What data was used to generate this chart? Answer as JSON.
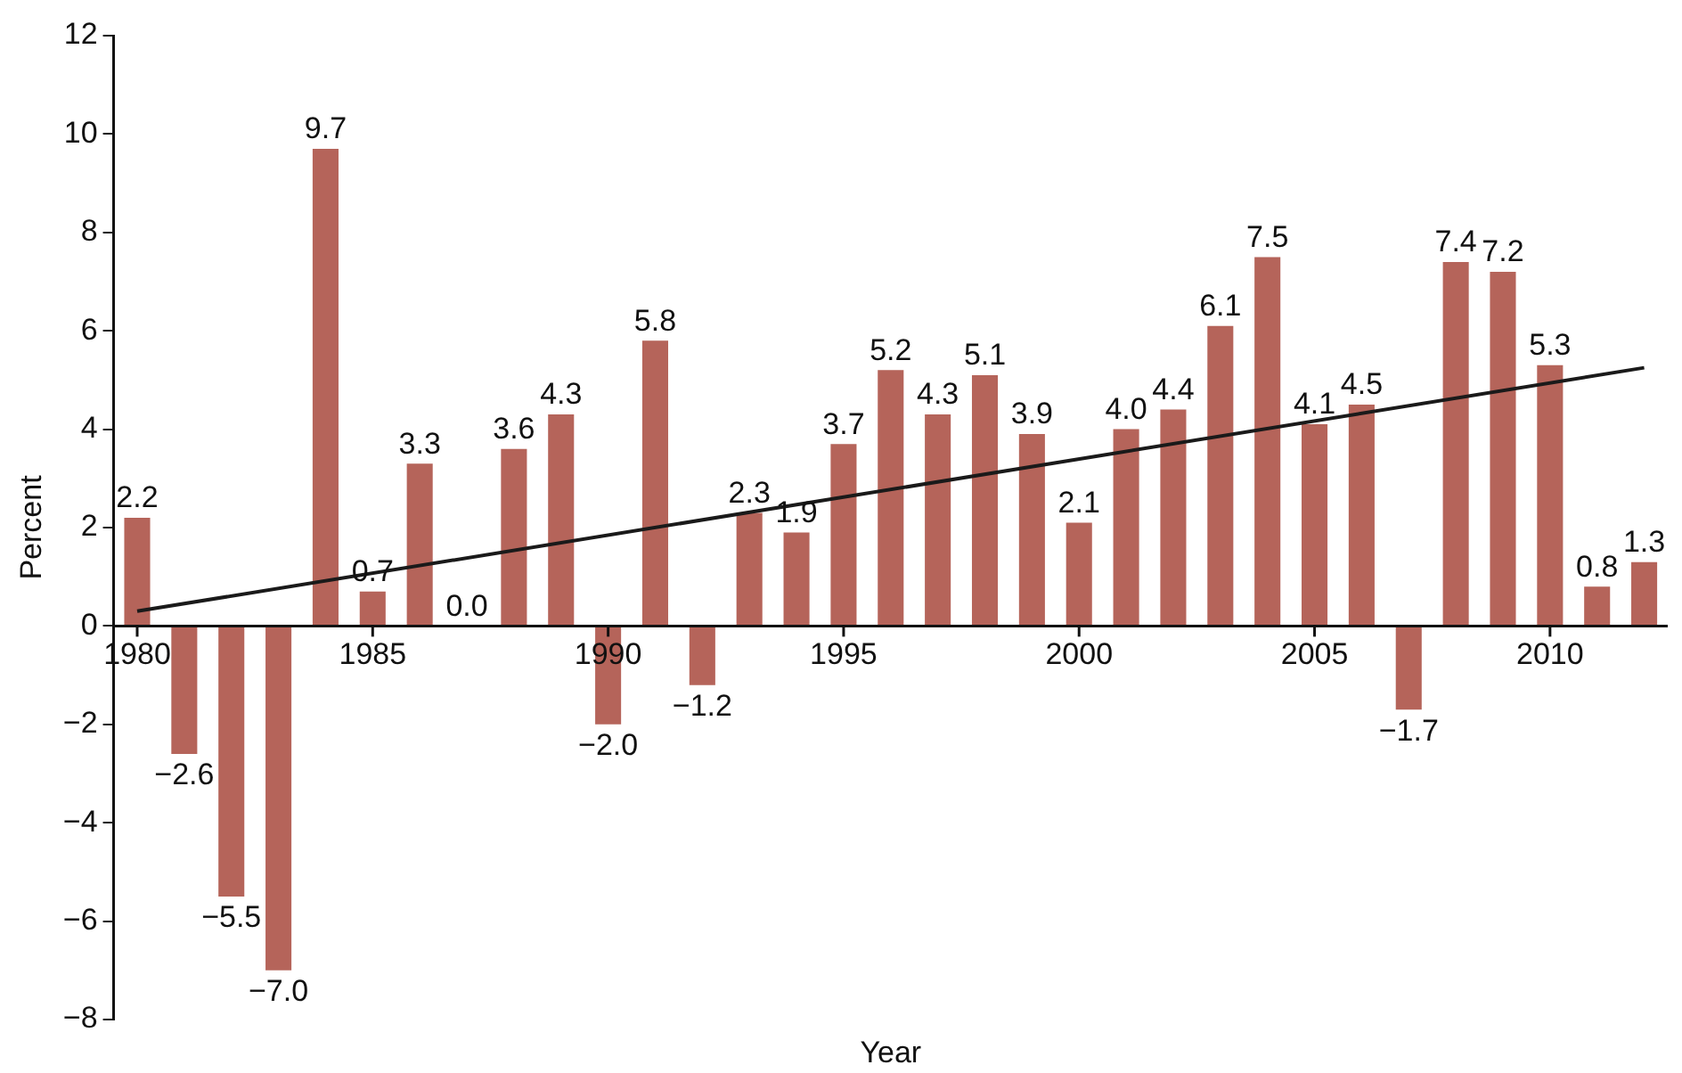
{
  "chart_data": {
    "type": "bar",
    "xlabel": "Year",
    "ylabel": "Percent",
    "x": [
      1980,
      1981,
      1982,
      1983,
      1984,
      1985,
      1986,
      1987,
      1988,
      1989,
      1990,
      1991,
      1992,
      1993,
      1994,
      1995,
      1996,
      1997,
      1998,
      1999,
      2000,
      2001,
      2002,
      2003,
      2004,
      2005,
      2006,
      2007,
      2008,
      2009,
      2010,
      2011,
      2012
    ],
    "series": [
      {
        "color": "#b5645a",
        "values": [
          2.2,
          -2.6,
          -5.5,
          -7.0,
          9.7,
          0.7,
          3.3,
          0.0,
          3.6,
          4.3,
          -2.0,
          5.8,
          -1.2,
          2.3,
          1.9,
          3.7,
          5.2,
          4.3,
          5.1,
          3.9,
          2.1,
          4.0,
          4.4,
          6.1,
          7.5,
          4.1,
          4.5,
          -1.7,
          7.4,
          7.2,
          5.3,
          0.8,
          1.3
        ],
        "value_labels": [
          "2.2",
          "−2.6",
          "−5.5",
          "−7.0",
          "9.7",
          "0.7",
          "3.3",
          "0.0",
          "3.6",
          "4.3",
          "−2.0",
          "5.8",
          "−1.2",
          "2.3",
          "1.9",
          "3.7",
          "5.2",
          "4.3",
          "5.1",
          "3.9",
          "2.1",
          "4.0",
          "4.4",
          "6.1",
          "7.5",
          "4.1",
          "4.5",
          "−1.7",
          "7.4",
          "7.2",
          "5.3",
          "0.8",
          "1.3"
        ]
      },
      {
        "type": "line",
        "color": "#1a1a1a",
        "x": [
          1980,
          2012
        ],
        "values": [
          0.3,
          5.25
        ]
      }
    ],
    "xlim": [
      1979.5,
      2012.5
    ],
    "xticks": [
      1980,
      1985,
      1990,
      1995,
      2000,
      2005,
      2010
    ],
    "ylim": [
      -8,
      12
    ],
    "yticks": [
      -8,
      -6,
      -4,
      -2,
      0,
      2,
      4,
      6,
      8,
      10,
      12
    ],
    "grid": false,
    "legend": false,
    "marker": "none",
    "line_style": "solid"
  }
}
